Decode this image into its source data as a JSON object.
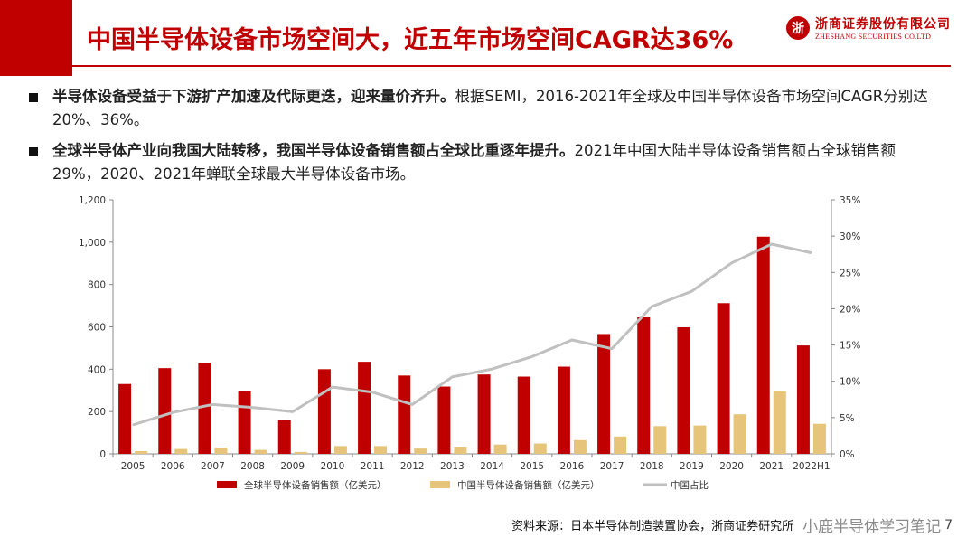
{
  "header": {
    "title": "中国半导体设备市场空间大，近五年市场空间CAGR达36%",
    "logo_mark": "浙",
    "logo_cn": "浙商证券股份有限公司",
    "logo_en": "ZHESHANG SECURITIES CO.LTD"
  },
  "bullets": [
    {
      "bold": "半导体设备受益于下游扩产加速及代际更迭，迎来量价齐升。",
      "text": "根据SEMI，2016-2021年全球及中国半导体设备市场空间CAGR分别达20%、36%。"
    },
    {
      "bold": "全球半导体产业向我国大陆转移，我国半导体设备销售额占全球比重逐年提升。",
      "text": "2021年中国大陆半导体设备销售额占全球销售额29%，2020、2021年蝉联全球最大半导体设备市场。"
    }
  ],
  "chart_data": {
    "type": "bar",
    "categories": [
      "2005",
      "2006",
      "2007",
      "2008",
      "2009",
      "2010",
      "2011",
      "2012",
      "2013",
      "2014",
      "2015",
      "2016",
      "2017",
      "2018",
      "2019",
      "2020",
      "2021",
      "2022H1"
    ],
    "series": [
      {
        "name": "全球半导体设备销售额（亿美元）",
        "type": "bar",
        "axis": "left",
        "color": "#c00000",
        "values": [
          330,
          405,
          430,
          297,
          160,
          400,
          435,
          370,
          318,
          375,
          365,
          412,
          566,
          645,
          598,
          712,
          1026,
          512
        ]
      },
      {
        "name": "中国半导体设备销售额（亿美元）",
        "type": "bar",
        "axis": "left",
        "color": "#e6c47a",
        "values": [
          13,
          23,
          29,
          19,
          9,
          37,
          37,
          25,
          34,
          44,
          49,
          65,
          82,
          131,
          134,
          187,
          296,
          142
        ]
      },
      {
        "name": "中国占比",
        "type": "line",
        "axis": "right",
        "color": "#c0c0c0",
        "values": [
          0.04,
          0.057,
          0.068,
          0.064,
          0.058,
          0.092,
          0.085,
          0.068,
          0.106,
          0.117,
          0.134,
          0.157,
          0.145,
          0.203,
          0.224,
          0.263,
          0.289,
          0.277
        ]
      }
    ],
    "left_axis": {
      "min": 0,
      "max": 1200,
      "ticks": [
        "0",
        "200",
        "400",
        "600",
        "800",
        "1,000",
        "1,200"
      ]
    },
    "right_axis": {
      "min": 0,
      "max": 0.35,
      "ticks": [
        "0%",
        "5%",
        "10%",
        "15%",
        "20%",
        "25%",
        "30%",
        "35%"
      ]
    },
    "legend_position": "bottom"
  },
  "footer": {
    "source": "资料来源：日本半导体制造装置协会，浙商证券研究所",
    "watermark": "小鹿半导体学习笔记",
    "page": "7"
  }
}
